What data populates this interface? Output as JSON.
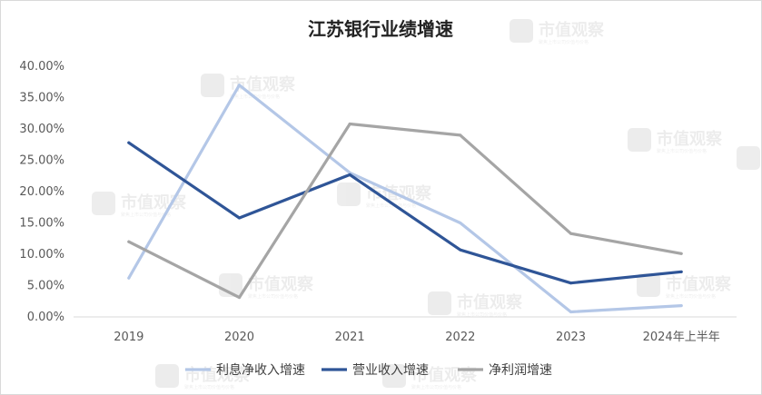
{
  "watermark": {
    "brand": "市值观察",
    "sub": "聚焦上市公司价值与价格"
  },
  "chart_data": {
    "type": "line",
    "title": "江苏银行业绩增速",
    "xlabel": "",
    "ylabel": "",
    "categories": [
      "2019",
      "2020",
      "2021",
      "2022",
      "2023",
      "2024年上半年"
    ],
    "y_ticks": [
      "0.00%",
      "5.00%",
      "10.00%",
      "15.00%",
      "20.00%",
      "25.00%",
      "30.00%",
      "35.00%",
      "40.00%"
    ],
    "ylim": [
      0,
      40
    ],
    "grid": false,
    "legend_position": "bottom",
    "series": [
      {
        "name": "利息净收入增速",
        "color": "#b4c7e7",
        "values": [
          6.2,
          37.0,
          23.0,
          15.0,
          0.8,
          1.8
        ]
      },
      {
        "name": "营业收入增速",
        "color": "#2f5597",
        "values": [
          27.8,
          15.8,
          22.7,
          10.7,
          5.4,
          7.2
        ]
      },
      {
        "name": "净利润增速",
        "color": "#a5a5a5",
        "values": [
          12.0,
          3.1,
          30.8,
          29.0,
          13.3,
          10.1
        ]
      }
    ]
  }
}
